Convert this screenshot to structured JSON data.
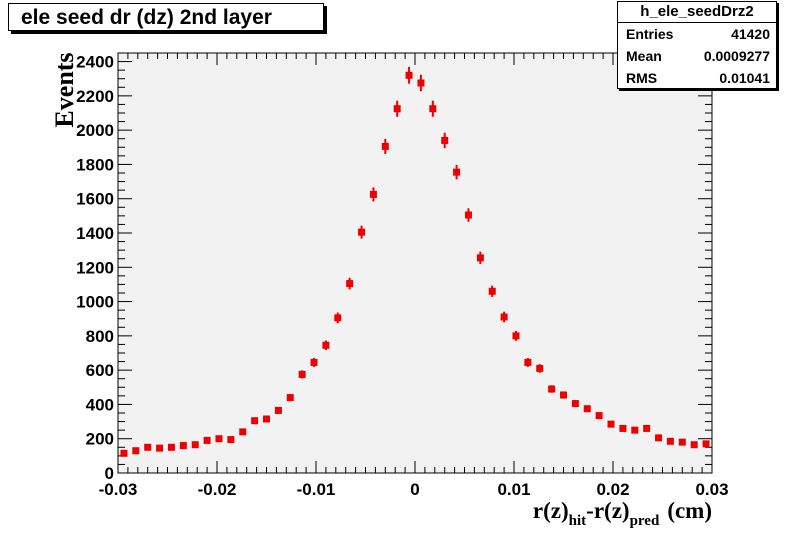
{
  "title": "ele seed dr (dz) 2nd layer",
  "stats": {
    "name": "h_ele_seedDrz2",
    "rows": [
      {
        "label": "Entries",
        "value": "41420"
      },
      {
        "label": "Mean",
        "value": "0.0009277"
      },
      {
        "label": "RMS",
        "value": "0.01041"
      }
    ]
  },
  "axis_titles": {
    "y": "Events",
    "x_main": "r(z)",
    "x_sub1": "hit",
    "x_mid": "-r(z)",
    "x_sub2": "pred",
    "x_unit": "(cm)"
  },
  "colors": {
    "marker": "#ee0000",
    "frame_bg": "#f2f2f2"
  },
  "chart_data": {
    "type": "scatter",
    "xlim": [
      -0.03,
      0.03
    ],
    "ylim": [
      0,
      2450
    ],
    "x_ticks": [
      -0.03,
      -0.02,
      -0.01,
      0,
      0.01,
      0.02,
      0.03
    ],
    "x_tick_labels": [
      "-0.03",
      "-0.02",
      "-0.01",
      "0",
      "0.01",
      "0.02",
      "0.03"
    ],
    "y_ticks": [
      0,
      200,
      400,
      600,
      800,
      1000,
      1200,
      1400,
      1600,
      1800,
      2000,
      2200,
      2400
    ],
    "y_tick_labels": [
      "0",
      "200",
      "400",
      "600",
      "800",
      "1000",
      "1200",
      "1400",
      "1600",
      "1800",
      "2000",
      "2200",
      "2400"
    ],
    "grid": false,
    "x": [
      -0.0294,
      -0.0282,
      -0.027,
      -0.0258,
      -0.0246,
      -0.0234,
      -0.0222,
      -0.021,
      -0.0198,
      -0.0186,
      -0.0174,
      -0.0162,
      -0.015,
      -0.0138,
      -0.0126,
      -0.0114,
      -0.0102,
      -0.009,
      -0.0078,
      -0.0066,
      -0.0054,
      -0.0042,
      -0.003,
      -0.0018,
      -0.0006,
      0.0006,
      0.0018,
      0.003,
      0.0042,
      0.0054,
      0.0066,
      0.0078,
      0.009,
      0.0102,
      0.0114,
      0.0126,
      0.0138,
      0.015,
      0.0162,
      0.0174,
      0.0186,
      0.0198,
      0.021,
      0.0222,
      0.0234,
      0.0246,
      0.0258,
      0.027,
      0.0282,
      0.0294
    ],
    "y": [
      115,
      130,
      150,
      145,
      150,
      160,
      165,
      190,
      200,
      195,
      240,
      305,
      315,
      365,
      440,
      575,
      645,
      745,
      905,
      1105,
      1405,
      1625,
      1905,
      2125,
      2320,
      2275,
      2125,
      1940,
      1755,
      1505,
      1255,
      1060,
      910,
      800,
      645,
      610,
      490,
      455,
      405,
      375,
      335,
      285,
      260,
      250,
      260,
      205,
      185,
      180,
      165,
      170
    ],
    "err": [
      11,
      12,
      12,
      12,
      12,
      13,
      13,
      14,
      14,
      14,
      16,
      18,
      18,
      19,
      21,
      24,
      26,
      28,
      31,
      34,
      38,
      41,
      44,
      47,
      49,
      48,
      47,
      45,
      42,
      39,
      36,
      33,
      31,
      29,
      26,
      25,
      22,
      21,
      20,
      19,
      18,
      17,
      16,
      16,
      16,
      14,
      14,
      13,
      13,
      13
    ]
  }
}
